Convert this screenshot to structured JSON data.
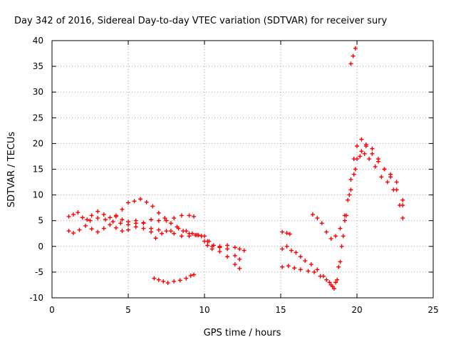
{
  "chart_data": {
    "type": "scatter",
    "title": "Day 342 of 2016, Sidereal Day-to-day VTEC variation (SDTVAR) for receiver sury",
    "xlabel": "GPS time / hours",
    "ylabel": "SDTVAR / TECUs",
    "xlim": [
      0,
      25
    ],
    "ylim": [
      -10,
      40
    ],
    "xticks": [
      0,
      5,
      10,
      15,
      20,
      25
    ],
    "yticks": [
      -10,
      -5,
      0,
      5,
      10,
      15,
      20,
      25,
      30,
      35,
      40
    ],
    "grid": true,
    "marker": "+",
    "color": "#ff0000",
    "series": [
      {
        "name": "arc-1",
        "points": [
          [
            1.1,
            5.8
          ],
          [
            1.4,
            6.2
          ],
          [
            1.7,
            6.6
          ],
          [
            2.0,
            5.6
          ],
          [
            2.3,
            5.2
          ],
          [
            2.6,
            6.0
          ],
          [
            3.0,
            6.8
          ],
          [
            3.4,
            6.2
          ],
          [
            3.8,
            5.6
          ],
          [
            4.2,
            5.8
          ],
          [
            4.6,
            5.2
          ],
          [
            5.0,
            4.8
          ],
          [
            5.5,
            4.5
          ],
          [
            6.0,
            4.6
          ],
          [
            6.5,
            5.2
          ],
          [
            7.0,
            5.0
          ],
          [
            7.5,
            5.0
          ],
          [
            8.0,
            5.5
          ],
          [
            8.5,
            6.0
          ],
          [
            9.0,
            6.0
          ],
          [
            9.3,
            5.8
          ]
        ]
      },
      {
        "name": "arc-2",
        "points": [
          [
            1.1,
            3.0
          ],
          [
            1.4,
            2.6
          ],
          [
            1.8,
            3.2
          ],
          [
            2.2,
            4.0
          ],
          [
            2.6,
            3.4
          ],
          [
            3.0,
            2.8
          ],
          [
            3.4,
            3.5
          ],
          [
            3.8,
            4.2
          ],
          [
            4.2,
            3.6
          ],
          [
            4.6,
            3.0
          ],
          [
            5.0,
            3.2
          ],
          [
            5.5,
            3.8
          ],
          [
            6.0,
            3.5
          ],
          [
            6.5,
            2.8
          ],
          [
            6.8,
            1.6
          ],
          [
            7.2,
            2.5
          ],
          [
            7.8,
            3.0
          ],
          [
            8.3,
            3.5
          ],
          [
            8.8,
            3.0
          ],
          [
            9.2,
            2.5
          ],
          [
            9.6,
            2.2
          ],
          [
            10.0,
            2.0
          ],
          [
            10.3,
            1.0
          ],
          [
            10.6,
            0.2
          ],
          [
            11.0,
            0.0
          ],
          [
            11.5,
            0.2
          ],
          [
            12.0,
            -0.2
          ],
          [
            12.3,
            -0.5
          ],
          [
            12.6,
            -0.8
          ]
        ]
      },
      {
        "name": "arc-3",
        "points": [
          [
            2.5,
            5.0
          ],
          [
            3.0,
            5.5
          ],
          [
            3.5,
            5.2
          ],
          [
            4.0,
            4.8
          ],
          [
            4.5,
            4.5
          ],
          [
            5.0,
            4.2
          ],
          [
            5.5,
            5.0
          ],
          [
            6.0,
            4.5
          ],
          [
            6.5,
            3.5
          ],
          [
            7.0,
            3.2
          ],
          [
            7.5,
            3.0
          ],
          [
            8.0,
            2.5
          ],
          [
            8.5,
            2.0
          ],
          [
            9.0,
            2.0
          ],
          [
            9.5,
            2.2
          ],
          [
            9.8,
            2.0
          ],
          [
            10.0,
            1.0
          ],
          [
            10.2,
            0.2
          ],
          [
            10.5,
            -0.5
          ],
          [
            11.0,
            -1.0
          ],
          [
            11.5,
            -2.0
          ],
          [
            12.0,
            -3.5
          ],
          [
            12.3,
            -4.3
          ]
        ]
      },
      {
        "name": "arc-4",
        "points": [
          [
            4.2,
            6.0
          ],
          [
            4.6,
            7.2
          ],
          [
            5.0,
            8.5
          ],
          [
            5.4,
            8.8
          ],
          [
            5.8,
            9.2
          ],
          [
            6.2,
            8.6
          ],
          [
            6.6,
            7.8
          ],
          [
            7.0,
            6.5
          ],
          [
            7.4,
            5.5
          ],
          [
            7.8,
            4.5
          ],
          [
            8.2,
            3.8
          ],
          [
            8.6,
            3.0
          ],
          [
            9.0,
            2.5
          ],
          [
            9.4,
            2.2
          ],
          [
            9.8,
            2.0
          ],
          [
            10.2,
            1.0
          ],
          [
            10.5,
            0.0
          ],
          [
            11.0,
            -0.2
          ],
          [
            11.5,
            -0.5
          ],
          [
            12.0,
            -1.8
          ],
          [
            12.3,
            -2.5
          ]
        ]
      },
      {
        "name": "arc-5",
        "points": [
          [
            6.7,
            -6.2
          ],
          [
            7.0,
            -6.5
          ],
          [
            7.3,
            -6.8
          ],
          [
            7.6,
            -7.1
          ],
          [
            8.0,
            -6.8
          ],
          [
            8.4,
            -6.6
          ],
          [
            8.8,
            -6.2
          ],
          [
            9.1,
            -5.7
          ],
          [
            9.3,
            -5.5
          ]
        ]
      },
      {
        "name": "arc-6",
        "points": [
          [
            15.1,
            2.8
          ],
          [
            15.4,
            2.6
          ],
          [
            15.6,
            2.4
          ]
        ]
      },
      {
        "name": "arc-7",
        "points": [
          [
            15.1,
            -0.5
          ],
          [
            15.4,
            0.0
          ],
          [
            15.7,
            -0.8
          ],
          [
            16.0,
            -1.2
          ],
          [
            16.3,
            -2.0
          ],
          [
            16.6,
            -2.8
          ],
          [
            17.0,
            -3.5
          ],
          [
            17.4,
            -4.5
          ],
          [
            17.8,
            -5.8
          ],
          [
            18.2,
            -7.0
          ],
          [
            18.4,
            -7.8
          ],
          [
            18.6,
            -7.0
          ],
          [
            18.8,
            -4.0
          ],
          [
            19.0,
            0.0
          ],
          [
            19.2,
            5.0
          ],
          [
            19.4,
            9.0
          ],
          [
            19.6,
            13.0
          ],
          [
            19.8,
            17.0
          ],
          [
            20.0,
            19.5
          ],
          [
            20.3,
            20.8
          ],
          [
            20.6,
            19.8
          ],
          [
            21.0,
            18.0
          ],
          [
            21.4,
            16.5
          ],
          [
            21.8,
            15.0
          ],
          [
            22.2,
            13.5
          ],
          [
            22.6,
            11.0
          ],
          [
            23.0,
            8.0
          ]
        ]
      },
      {
        "name": "arc-8",
        "points": [
          [
            15.1,
            -4.0
          ],
          [
            15.5,
            -3.8
          ],
          [
            15.9,
            -4.2
          ],
          [
            16.3,
            -4.5
          ],
          [
            16.8,
            -4.8
          ],
          [
            17.2,
            -5.0
          ],
          [
            17.6,
            -5.8
          ],
          [
            18.0,
            -6.5
          ],
          [
            18.3,
            -7.5
          ],
          [
            18.5,
            -8.2
          ],
          [
            18.7,
            -6.5
          ],
          [
            18.9,
            -3.0
          ],
          [
            19.1,
            2.0
          ],
          [
            19.3,
            6.0
          ],
          [
            19.6,
            11.0
          ],
          [
            19.9,
            15.0
          ],
          [
            20.2,
            17.5
          ],
          [
            20.5,
            18.0
          ],
          [
            20.8,
            17.0
          ],
          [
            21.2,
            15.5
          ],
          [
            21.6,
            13.5
          ],
          [
            22.0,
            12.5
          ],
          [
            22.4,
            11.0
          ],
          [
            22.8,
            8.0
          ],
          [
            23.0,
            5.5
          ]
        ]
      },
      {
        "name": "arc-9",
        "points": [
          [
            17.1,
            6.2
          ],
          [
            17.4,
            5.5
          ],
          [
            17.7,
            4.5
          ],
          [
            18.0,
            2.8
          ],
          [
            18.3,
            1.5
          ],
          [
            18.6,
            2.0
          ],
          [
            18.9,
            3.5
          ],
          [
            19.2,
            6.0
          ],
          [
            19.5,
            10.0
          ],
          [
            19.8,
            14.0
          ],
          [
            20.0,
            17.0
          ],
          [
            20.3,
            18.5
          ],
          [
            20.6,
            19.5
          ],
          [
            21.0,
            19.0
          ],
          [
            21.4,
            17.0
          ],
          [
            21.8,
            15.0
          ],
          [
            22.2,
            14.0
          ],
          [
            22.6,
            12.5
          ],
          [
            23.0,
            9.0
          ]
        ]
      },
      {
        "name": "arc-10",
        "points": [
          [
            19.6,
            35.5
          ],
          [
            19.75,
            37.0
          ],
          [
            19.9,
            38.5
          ]
        ]
      }
    ]
  }
}
